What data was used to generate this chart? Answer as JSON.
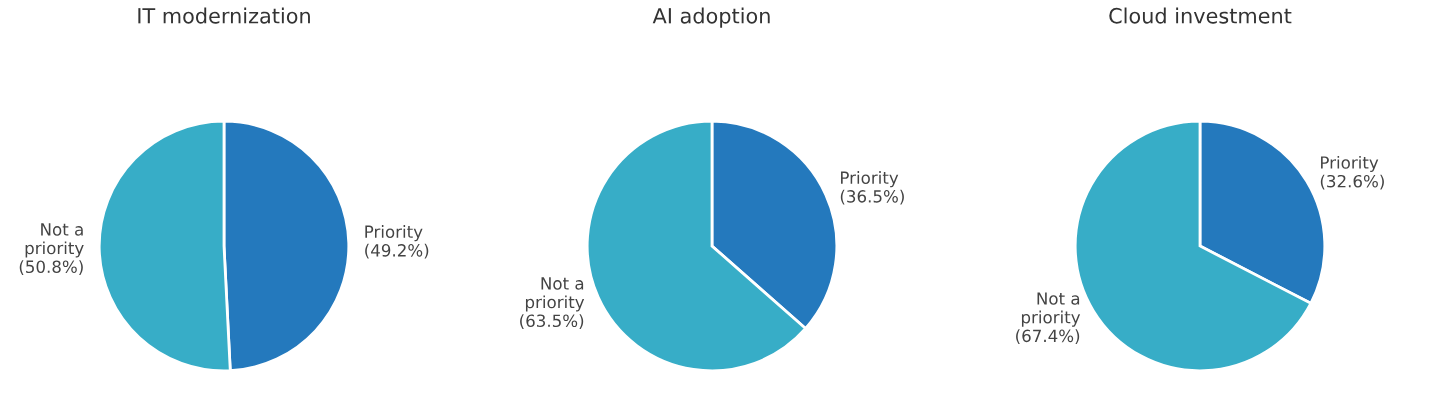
{
  "chart_data": [
    {
      "type": "pie",
      "title": "IT modernization",
      "categories": [
        "Priority",
        "Not a\npriority"
      ],
      "values": [
        49.2,
        50.8
      ],
      "colors": [
        "#2479bd",
        "#37adc7"
      ],
      "value_labels": [
        "(49.2%)",
        "(50.8%)"
      ]
    },
    {
      "type": "pie",
      "title": "AI adoption",
      "categories": [
        "Priority",
        "Not a\npriority"
      ],
      "values": [
        36.5,
        63.5
      ],
      "colors": [
        "#2479bd",
        "#37adc7"
      ],
      "value_labels": [
        "(36.5%)",
        "(63.5%)"
      ]
    },
    {
      "type": "pie",
      "title": "Cloud investment",
      "categories": [
        "Priority",
        "Not a\npriority"
      ],
      "values": [
        32.6,
        67.4
      ],
      "colors": [
        "#2479bd",
        "#37adc7"
      ],
      "value_labels": [
        "(32.6%)",
        "(67.4%)"
      ]
    }
  ]
}
